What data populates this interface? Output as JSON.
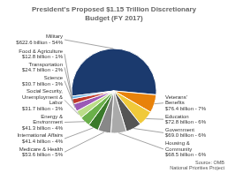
{
  "chart_data": {
    "type": "pie",
    "title": "President's Proposed $1.15 Trillion Discretionary\nBudget (FY 2017)",
    "categories": [
      "Military\n$622.6 billion - 54%",
      "Veterans'\nBenefits\n$76.4 billion - 7%",
      "Education\n$72.8 billion - 6%",
      "Government\n$69.0 billion - 6%",
      "Housing &\nCommunity\n$68.5 billion - 6%",
      "Medicare & Health\n$53.6 billion - 5%",
      "International Affairs\n$41.4 billion - 4%",
      "Energy &\nEnvironment\n$41.3 billion - 4%",
      "Social Security,\nUnemployment &\nLabor\n$31.7 billion - 3%",
      "Science\n$30.7 billion - 3%",
      "Transportation\n$24.7 billion - 2%",
      "Food & Agriculture\n$12.8 billion - 1%"
    ],
    "values": [
      54,
      7,
      6,
      6,
      6,
      5,
      4,
      4,
      3,
      3,
      2,
      1
    ],
    "colors": [
      "#1b3a6e",
      "#e8820a",
      "#f0c93a",
      "#555555",
      "#aaaaaa",
      "#888888",
      "#3a7a2a",
      "#6ab04a",
      "#bbdd88",
      "#9b59b6",
      "#c0392b",
      "#5dade2"
    ],
    "annotations": [
      "Source: OMB\nNational Priorities Project"
    ]
  }
}
